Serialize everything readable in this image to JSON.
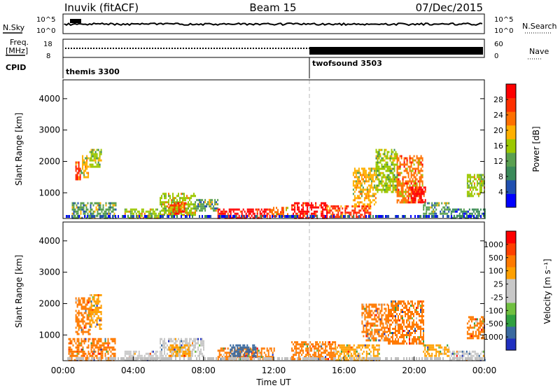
{
  "header": {
    "title": "Inuvik (fitACF)",
    "beam": "Beam 15",
    "date": "07/Dec/2015"
  },
  "panels": {
    "nsky": {
      "label": "N.Sky",
      "ticks": [
        "10^5",
        "10^0"
      ],
      "right_label": "N.Search",
      "right_ticks": [
        "10^5",
        "10^0"
      ]
    },
    "freq": {
      "label_top": "Freq.",
      "label_unit": "[MHz]",
      "ticks": [
        "18",
        "8"
      ],
      "right_label": "Nave",
      "right_ticks": [
        "60",
        "0"
      ]
    },
    "cpid": {
      "label": "CPID",
      "programs": [
        "themis 3300",
        "twofsound 3503"
      ]
    }
  },
  "icons": {
    "range_plot": "range-time-plot"
  },
  "colors": {
    "power_scale": [
      "#0000ff",
      "#2050b0",
      "#3a8a5a",
      "#5aa050",
      "#9cc800",
      "#ffb000",
      "#ff7000",
      "#ff3000",
      "#ff0000"
    ],
    "velocity_scale": [
      "#ff0000",
      "#ff4000",
      "#ff7a00",
      "#ffa000",
      "#c8c8c8",
      "#c8c8c8",
      "#70c040",
      "#30a040",
      "#3a6aa0",
      "#2030c0"
    ],
    "ground_scatter": "#c0c0c0",
    "divider": "#d0d0d0"
  },
  "chart_data": [
    {
      "type": "heatmap",
      "panel": "power",
      "title": "",
      "xlabel": "",
      "ylabel": "Slant Range [km]",
      "y_ticks": [
        "1000",
        "2000",
        "3000",
        "4000"
      ],
      "ylim": [
        180,
        4600
      ],
      "xlim": [
        0,
        24
      ],
      "colorbar": {
        "label": "Power [dB]",
        "ticks": [
          "4",
          "8",
          "12",
          "16",
          "20",
          "24",
          "28"
        ],
        "range": [
          0,
          30
        ]
      },
      "segments": [
        {
          "t0": 0.7,
          "t1": 1.0,
          "r0": 1400,
          "r1": 2000,
          "v": 24
        },
        {
          "t0": 1.0,
          "t1": 1.4,
          "r0": 1500,
          "r1": 2200,
          "v": 18
        },
        {
          "t0": 1.5,
          "t1": 2.2,
          "r0": 1800,
          "r1": 2400,
          "v": 14
        },
        {
          "t0": 0.5,
          "t1": 3.0,
          "r0": 200,
          "r1": 700,
          "v": 12
        },
        {
          "t0": 3.5,
          "t1": 5.5,
          "r0": 200,
          "r1": 500,
          "v": 16
        },
        {
          "t0": 5.5,
          "t1": 7.5,
          "r0": 300,
          "r1": 1000,
          "v": 16
        },
        {
          "t0": 6.0,
          "t1": 7.0,
          "r0": 300,
          "r1": 700,
          "v": 24
        },
        {
          "t0": 7.5,
          "t1": 8.8,
          "r0": 400,
          "r1": 800,
          "v": 12
        },
        {
          "t0": 8.8,
          "t1": 11.8,
          "r0": 200,
          "r1": 500,
          "v": 28
        },
        {
          "t0": 11.8,
          "t1": 12.8,
          "r0": 250,
          "r1": 550,
          "v": 20
        },
        {
          "t0": 13.0,
          "t1": 15.0,
          "r0": 200,
          "r1": 700,
          "v": 28
        },
        {
          "t0": 15.0,
          "t1": 17.5,
          "r0": 200,
          "r1": 600,
          "v": 24
        },
        {
          "t0": 16.5,
          "t1": 17.8,
          "r0": 600,
          "r1": 1800,
          "v": 18
        },
        {
          "t0": 17.8,
          "t1": 19.0,
          "r0": 1000,
          "r1": 2400,
          "v": 14
        },
        {
          "t0": 19.0,
          "t1": 20.5,
          "r0": 700,
          "r1": 2200,
          "v": 22
        },
        {
          "t0": 19.8,
          "t1": 20.6,
          "r0": 700,
          "r1": 1200,
          "v": 28
        },
        {
          "t0": 20.5,
          "t1": 22.0,
          "r0": 300,
          "r1": 700,
          "v": 12
        },
        {
          "t0": 22.0,
          "t1": 24.0,
          "r0": 200,
          "r1": 500,
          "v": 8
        },
        {
          "t0": 23.0,
          "t1": 24.0,
          "r0": 900,
          "r1": 1600,
          "v": 16
        }
      ]
    },
    {
      "type": "heatmap",
      "panel": "velocity",
      "title": "",
      "xlabel": "Time UT",
      "ylabel": "Slant Range [km]",
      "x_ticks": [
        "00:00",
        "04:00",
        "08:00",
        "12:00",
        "16:00",
        "20:00",
        "00:00"
      ],
      "y_ticks": [
        "1000",
        "2000",
        "3000",
        "4000"
      ],
      "ylim": [
        180,
        4600
      ],
      "xlim": [
        0,
        24
      ],
      "colorbar": {
        "label": "Velocity [m s⁻¹]",
        "ticks": [
          "1000",
          "500",
          "100",
          "25",
          "-25",
          "-100",
          "-500",
          "-1000"
        ]
      },
      "segments": [
        {
          "t0": 0.7,
          "t1": 1.5,
          "r0": 1000,
          "r1": 2200,
          "c": "#ff7a00"
        },
        {
          "t0": 1.5,
          "t1": 2.2,
          "r0": 1200,
          "r1": 2300,
          "c": "#ffa000"
        },
        {
          "t0": 0.3,
          "t1": 3.0,
          "r0": 200,
          "r1": 900,
          "c": "#ff7a00"
        },
        {
          "t0": 3.5,
          "t1": 5.5,
          "r0": 200,
          "r1": 500,
          "c": "#c8c8c8"
        },
        {
          "t0": 5.5,
          "t1": 8.0,
          "r0": 300,
          "r1": 900,
          "c": "#c8c8c8"
        },
        {
          "t0": 6.0,
          "t1": 7.2,
          "r0": 300,
          "r1": 700,
          "c": "#ffa000"
        },
        {
          "t0": 8.8,
          "t1": 12.0,
          "r0": 200,
          "r1": 600,
          "c": "#ff7a00"
        },
        {
          "t0": 9.5,
          "t1": 11.0,
          "r0": 300,
          "r1": 700,
          "c": "#3a6aa0"
        },
        {
          "t0": 13.0,
          "t1": 15.5,
          "r0": 200,
          "r1": 800,
          "c": "#ff7a00"
        },
        {
          "t0": 15.5,
          "t1": 18.0,
          "r0": 200,
          "r1": 700,
          "c": "#ffa000"
        },
        {
          "t0": 17.0,
          "t1": 18.5,
          "r0": 800,
          "r1": 2000,
          "c": "#ff7a00"
        },
        {
          "t0": 18.5,
          "t1": 20.5,
          "r0": 700,
          "r1": 2100,
          "c": "#ff7a00"
        },
        {
          "t0": 20.5,
          "t1": 22.0,
          "r0": 300,
          "r1": 700,
          "c": "#ffa000"
        },
        {
          "t0": 22.0,
          "t1": 24.0,
          "r0": 200,
          "r1": 500,
          "c": "#c8c8c8"
        },
        {
          "t0": 23.0,
          "t1": 24.0,
          "r0": 900,
          "r1": 1600,
          "c": "#ff7a00"
        }
      ]
    }
  ]
}
